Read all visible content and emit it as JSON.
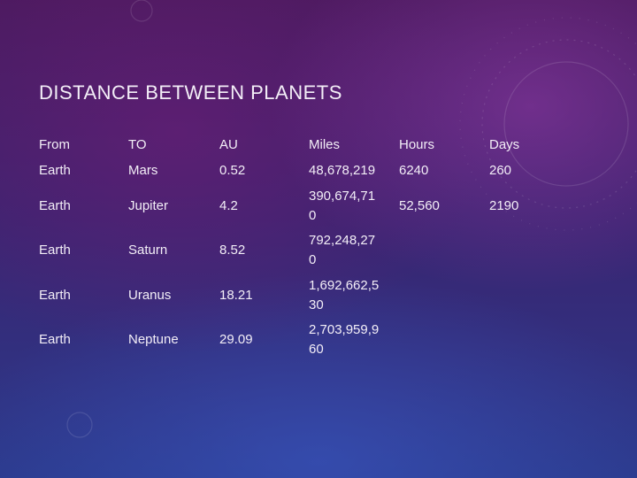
{
  "title": "DISTANCE BETWEEN PLANETS",
  "table": {
    "header": [
      "From",
      "TO",
      "AU",
      "Miles",
      "Hours",
      "Days"
    ],
    "rows": [
      [
        "Earth",
        "Mars",
        "0.52",
        "48,678,219",
        "6240",
        "260"
      ],
      [
        "Earth",
        "Jupiter",
        "4.2",
        "390,674,710",
        "52,560",
        "2190"
      ],
      [
        "Earth",
        "Saturn",
        "8.52",
        "792,248,270"
      ],
      [
        "Earth",
        "Uranus",
        "18.21",
        "1,692,662,530"
      ],
      [
        "Earth",
        "Neptune",
        "29.09",
        "2,703,959,960"
      ]
    ]
  }
}
